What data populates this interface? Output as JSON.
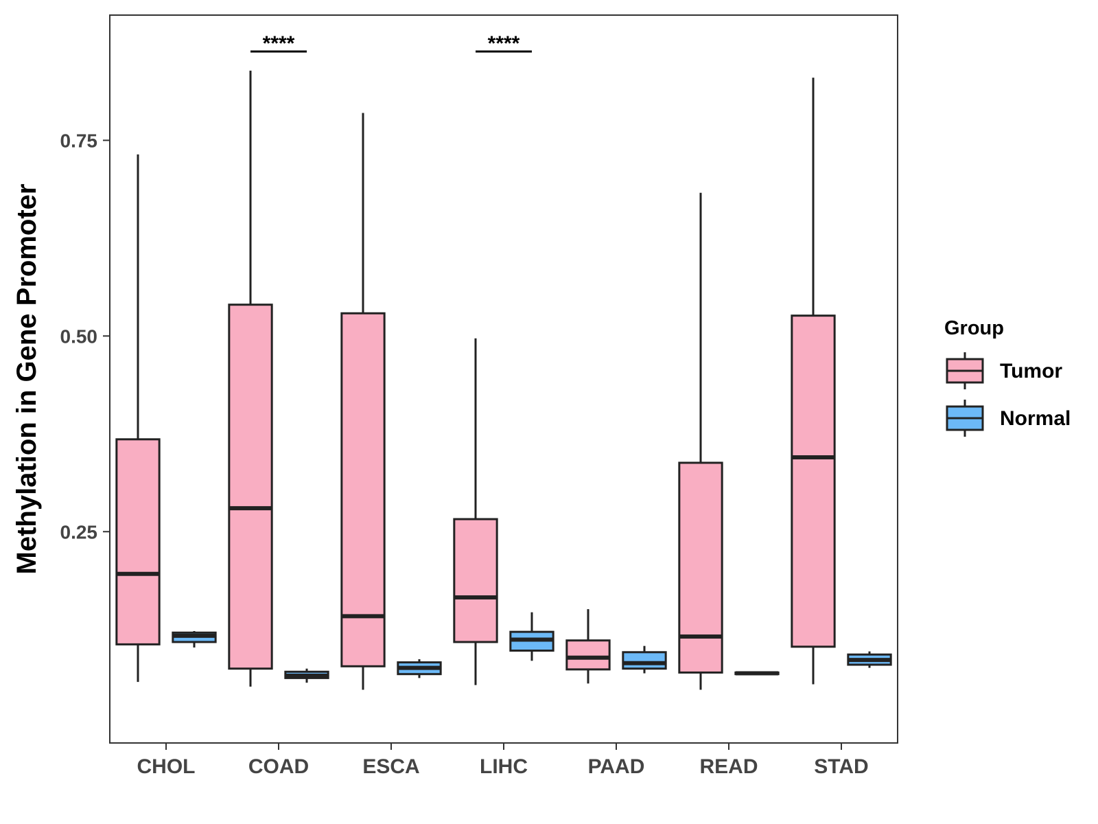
{
  "chart_data": {
    "type": "boxplot",
    "title": "",
    "xlabel": "",
    "ylabel": "Methylation in Gene Promoter",
    "ylim": [
      -0.02,
      0.91
    ],
    "yticks": [
      0.25,
      0.5,
      0.75
    ],
    "ytick_labels": [
      "0.25",
      "0.50",
      "0.75"
    ],
    "categories": [
      "CHOL",
      "COAD",
      "ESCA",
      "LIHC",
      "PAAD",
      "READ",
      "STAD"
    ],
    "legend": {
      "title": "Group",
      "position": "right",
      "entries": [
        {
          "name": "Tumor",
          "color": "#F9AEC2"
        },
        {
          "name": "Normal",
          "color": "#6CB9F7"
        }
      ]
    },
    "series": [
      {
        "name": "Tumor",
        "color": "#F9AEC2",
        "boxes": [
          {
            "category": "CHOL",
            "min": 0.058,
            "q1": 0.106,
            "median": 0.196,
            "q3": 0.368,
            "max": 0.732
          },
          {
            "category": "COAD",
            "min": 0.052,
            "q1": 0.075,
            "median": 0.28,
            "q3": 0.54,
            "max": 0.839
          },
          {
            "category": "ESCA",
            "min": 0.048,
            "q1": 0.078,
            "median": 0.142,
            "q3": 0.529,
            "max": 0.785
          },
          {
            "category": "LIHC",
            "min": 0.054,
            "q1": 0.109,
            "median": 0.166,
            "q3": 0.266,
            "max": 0.497
          },
          {
            "category": "PAAD",
            "min": 0.056,
            "q1": 0.074,
            "median": 0.089,
            "q3": 0.111,
            "max": 0.151
          },
          {
            "category": "READ",
            "min": 0.048,
            "q1": 0.07,
            "median": 0.116,
            "q3": 0.338,
            "max": 0.683
          },
          {
            "category": "STAD",
            "min": 0.055,
            "q1": 0.103,
            "median": 0.345,
            "q3": 0.526,
            "max": 0.83
          }
        ]
      },
      {
        "name": "Normal",
        "color": "#6CB9F7",
        "boxes": [
          {
            "category": "CHOL",
            "min": 0.102,
            "q1": 0.109,
            "median": 0.117,
            "q3": 0.121,
            "max": 0.123
          },
          {
            "category": "COAD",
            "min": 0.057,
            "q1": 0.063,
            "median": 0.066,
            "q3": 0.071,
            "max": 0.075
          },
          {
            "category": "ESCA",
            "min": 0.063,
            "q1": 0.068,
            "median": 0.076,
            "q3": 0.083,
            "max": 0.087
          },
          {
            "category": "LIHC",
            "min": 0.085,
            "q1": 0.098,
            "median": 0.112,
            "q3": 0.122,
            "max": 0.147
          },
          {
            "category": "PAAD",
            "min": 0.069,
            "q1": 0.075,
            "median": 0.082,
            "q3": 0.096,
            "max": 0.104
          },
          {
            "category": "READ",
            "min": 0.068,
            "q1": 0.068,
            "median": 0.069,
            "q3": 0.07,
            "max": 0.071
          },
          {
            "category": "STAD",
            "min": 0.076,
            "q1": 0.08,
            "median": 0.086,
            "q3": 0.093,
            "max": 0.097
          }
        ]
      }
    ],
    "annotations": [
      {
        "category": "COAD",
        "text": "****"
      },
      {
        "category": "LIHC",
        "text": "****"
      }
    ]
  }
}
